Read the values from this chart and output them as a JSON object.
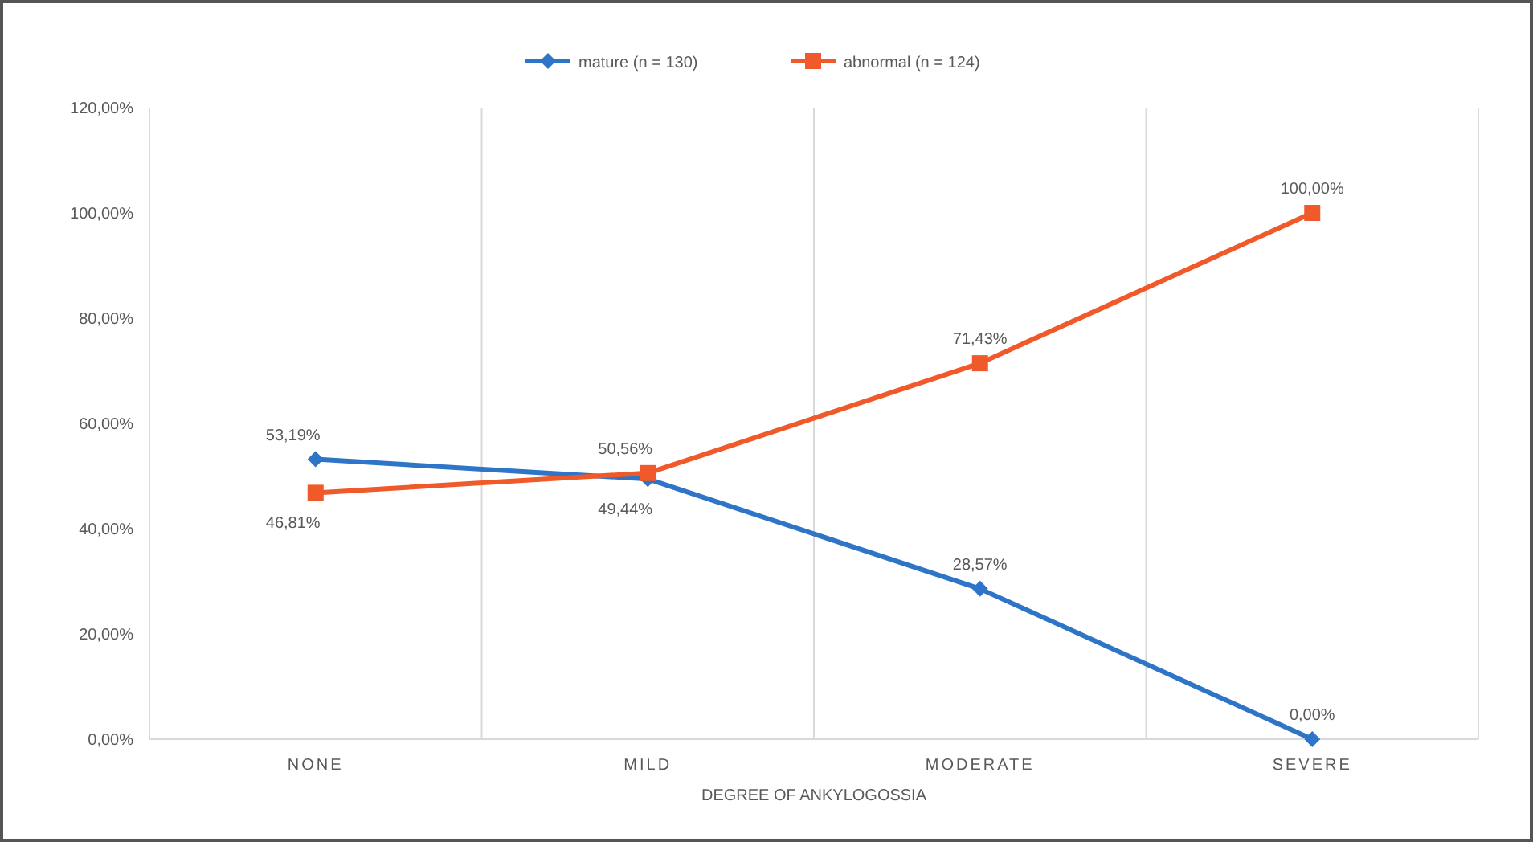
{
  "chart_data": {
    "type": "line",
    "xlabel": "DEGREE OF ANKYLOGOSSIA",
    "categories": [
      "NONE",
      "MILD",
      "MODERATE",
      "SEVERE"
    ],
    "ylim": [
      0,
      120
    ],
    "yticks": [
      {
        "value": 0,
        "label": "0,00%"
      },
      {
        "value": 20,
        "label": "20,00%"
      },
      {
        "value": 40,
        "label": "40,00%"
      },
      {
        "value": 60,
        "label": "60,00%"
      },
      {
        "value": 80,
        "label": "80,00%"
      },
      {
        "value": 100,
        "label": "100,00%"
      },
      {
        "value": 120,
        "label": "120,00%"
      }
    ],
    "grid": "x",
    "legend": "top",
    "line_style": "solid",
    "series": [
      {
        "name": "mature (n = 130)",
        "color": "#2e75c8",
        "marker": "diamond",
        "values": [
          53.19,
          49.44,
          28.57,
          0
        ],
        "value_labels": [
          "53,19%",
          "49,44%",
          "28,57%",
          "0,00%"
        ]
      },
      {
        "name": "abnormal (n = 124)",
        "color": "#f0592a",
        "marker": "square",
        "values": [
          46.81,
          50.56,
          71.43,
          100
        ],
        "value_labels": [
          "46,81%",
          "50,56%",
          "71,43%",
          "100,00%"
        ]
      }
    ]
  }
}
